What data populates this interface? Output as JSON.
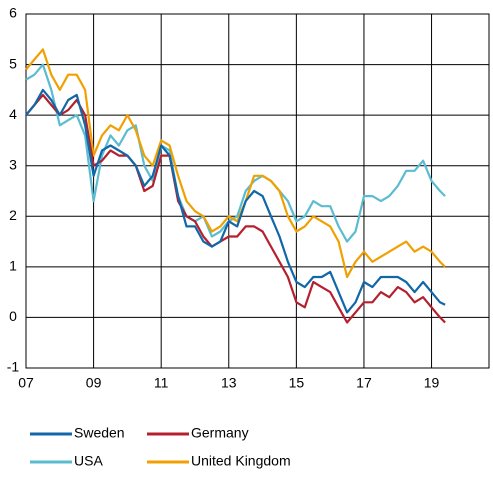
{
  "chart_data": {
    "type": "line",
    "x": [
      2007,
      2007.25,
      2007.5,
      2007.75,
      2008,
      2008.25,
      2008.5,
      2008.75,
      2009,
      2009.25,
      2009.5,
      2009.75,
      2010,
      2010.25,
      2010.5,
      2010.75,
      2011,
      2011.25,
      2011.5,
      2011.75,
      2012,
      2012.25,
      2012.5,
      2012.75,
      2013,
      2013.25,
      2013.5,
      2013.75,
      2014,
      2014.25,
      2014.5,
      2014.75,
      2015,
      2015.25,
      2015.5,
      2015.75,
      2016,
      2016.25,
      2016.5,
      2016.75,
      2017,
      2017.25,
      2017.5,
      2017.75,
      2018,
      2018.25,
      2018.5,
      2018.75,
      2019,
      2019.25,
      2019.4
    ],
    "series": [
      {
        "name": "USA",
        "color": "#5bbcd1",
        "values": [
          4.7,
          4.8,
          5.0,
          4.5,
          3.8,
          3.9,
          4.0,
          3.6,
          2.3,
          3.2,
          3.6,
          3.4,
          3.7,
          3.8,
          3.0,
          2.7,
          3.4,
          3.3,
          2.4,
          2.0,
          1.9,
          2.0,
          1.6,
          1.7,
          1.9,
          2.0,
          2.5,
          2.7,
          2.8,
          2.7,
          2.5,
          2.3,
          1.9,
          2.0,
          2.3,
          2.2,
          2.2,
          1.8,
          1.5,
          1.7,
          2.4,
          2.4,
          2.3,
          2.4,
          2.6,
          2.9,
          2.9,
          3.1,
          2.7,
          2.5,
          2.4
        ]
      },
      {
        "name": "United Kingdom",
        "color": "#f0a000",
        "values": [
          4.9,
          5.1,
          5.3,
          4.8,
          4.5,
          4.8,
          4.8,
          4.5,
          3.2,
          3.6,
          3.8,
          3.7,
          4.0,
          3.7,
          3.2,
          3.0,
          3.5,
          3.4,
          2.8,
          2.3,
          2.1,
          2.0,
          1.7,
          1.8,
          2.0,
          1.9,
          2.3,
          2.8,
          2.8,
          2.7,
          2.5,
          2.0,
          1.7,
          1.8,
          2.0,
          1.9,
          1.8,
          1.5,
          0.8,
          1.1,
          1.3,
          1.1,
          1.2,
          1.3,
          1.4,
          1.5,
          1.3,
          1.4,
          1.3,
          1.1,
          1.0
        ]
      },
      {
        "name": "Germany",
        "color": "#b5202e",
        "values": [
          4.0,
          4.2,
          4.4,
          4.2,
          4.0,
          4.1,
          4.3,
          4.0,
          3.0,
          3.1,
          3.3,
          3.2,
          3.2,
          3.0,
          2.5,
          2.6,
          3.2,
          3.2,
          2.3,
          2.0,
          1.9,
          1.6,
          1.4,
          1.5,
          1.6,
          1.6,
          1.8,
          1.8,
          1.7,
          1.4,
          1.1,
          0.8,
          0.3,
          0.2,
          0.7,
          0.6,
          0.5,
          0.2,
          -0.1,
          0.1,
          0.3,
          0.3,
          0.5,
          0.4,
          0.6,
          0.5,
          0.3,
          0.4,
          0.2,
          0.0,
          -0.1
        ]
      },
      {
        "name": "Sweden",
        "color": "#1167a8",
        "values": [
          4.0,
          4.2,
          4.5,
          4.3,
          4.0,
          4.3,
          4.4,
          3.8,
          2.8,
          3.3,
          3.4,
          3.3,
          3.2,
          3.0,
          2.6,
          2.8,
          3.4,
          3.2,
          2.4,
          1.8,
          1.8,
          1.5,
          1.4,
          1.5,
          1.9,
          1.8,
          2.3,
          2.5,
          2.4,
          2.0,
          1.6,
          1.1,
          0.7,
          0.6,
          0.8,
          0.8,
          0.9,
          0.5,
          0.1,
          0.3,
          0.7,
          0.6,
          0.8,
          0.8,
          0.8,
          0.7,
          0.5,
          0.7,
          0.5,
          0.3,
          0.25
        ]
      }
    ],
    "xlim": [
      2007,
      2020.7
    ],
    "xticks": [
      {
        "value": 2007,
        "label": "07"
      },
      {
        "value": 2009,
        "label": "09"
      },
      {
        "value": 2011,
        "label": "11"
      },
      {
        "value": 2013,
        "label": "13"
      },
      {
        "value": 2015,
        "label": "15"
      },
      {
        "value": 2017,
        "label": "17"
      },
      {
        "value": 2019,
        "label": "19"
      }
    ],
    "ylim": [
      -1,
      6
    ],
    "yticks": [
      -1,
      0,
      1,
      2,
      3,
      4,
      5,
      6
    ],
    "grid": true,
    "legend": "bottom"
  }
}
